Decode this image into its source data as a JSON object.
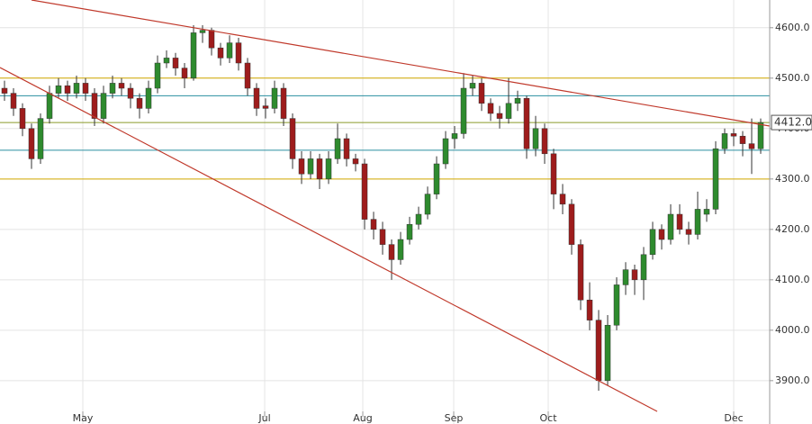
{
  "chart_data": {
    "type": "candlestick",
    "xlim": [
      -0.5,
      85
    ],
    "ylim": [
      3814,
      4655
    ],
    "yticks": [
      {
        "value": 3900,
        "label": "3900.0"
      },
      {
        "value": 4000,
        "label": "4000.0"
      },
      {
        "value": 4100,
        "label": "4100.0"
      },
      {
        "value": 4200,
        "label": "4200.0"
      },
      {
        "value": 4300,
        "label": "4300.0"
      },
      {
        "value": 4400,
        "label": "4400.0"
      },
      {
        "value": 4500,
        "label": "4500.0"
      },
      {
        "value": 4600,
        "label": "4600.0"
      }
    ],
    "xticks": [
      {
        "value": 8.7,
        "label": "May"
      },
      {
        "value": 28.9,
        "label": "Jul"
      },
      {
        "value": 39.8,
        "label": "Aug"
      },
      {
        "value": 49.9,
        "label": "Sep"
      },
      {
        "value": 60.4,
        "label": "Oct"
      },
      {
        "value": 81,
        "label": "Dec"
      }
    ],
    "grid": true,
    "up_color": "#2e8b2e",
    "down_color": "#9e1c1c",
    "ohlc": [
      [
        4480,
        4495,
        4455,
        4470
      ],
      [
        4470,
        4480,
        4425,
        4440
      ],
      [
        4440,
        4450,
        4385,
        4400
      ],
      [
        4400,
        4410,
        4320,
        4340
      ],
      [
        4340,
        4430,
        4330,
        4420
      ],
      [
        4420,
        4485,
        4410,
        4470
      ],
      [
        4470,
        4500,
        4460,
        4485
      ],
      [
        4485,
        4495,
        4455,
        4470
      ],
      [
        4470,
        4505,
        4460,
        4490
      ],
      [
        4490,
        4500,
        4455,
        4470
      ],
      [
        4470,
        4480,
        4405,
        4420
      ],
      [
        4420,
        4485,
        4410,
        4470
      ],
      [
        4470,
        4505,
        4460,
        4490
      ],
      [
        4490,
        4500,
        4465,
        4480
      ],
      [
        4480,
        4490,
        4440,
        4460
      ],
      [
        4460,
        4470,
        4420,
        4440
      ],
      [
        4440,
        4495,
        4430,
        4480
      ],
      [
        4480,
        4545,
        4470,
        4530
      ],
      [
        4530,
        4555,
        4520,
        4540
      ],
      [
        4540,
        4550,
        4505,
        4520
      ],
      [
        4520,
        4530,
        4480,
        4500
      ],
      [
        4500,
        4605,
        4495,
        4590
      ],
      [
        4590,
        4605,
        4570,
        4595
      ],
      [
        4595,
        4600,
        4545,
        4560
      ],
      [
        4560,
        4570,
        4525,
        4540
      ],
      [
        4540,
        4585,
        4530,
        4570
      ],
      [
        4570,
        4580,
        4515,
        4530
      ],
      [
        4530,
        4540,
        4465,
        4480
      ],
      [
        4480,
        4490,
        4425,
        4440
      ],
      [
        4445,
        4460,
        4420,
        4440
      ],
      [
        4440,
        4495,
        4430,
        4480
      ],
      [
        4480,
        4490,
        4405,
        4420
      ],
      [
        4420,
        4430,
        4320,
        4340
      ],
      [
        4340,
        4355,
        4290,
        4310
      ],
      [
        4310,
        4355,
        4300,
        4340
      ],
      [
        4340,
        4350,
        4280,
        4300
      ],
      [
        4300,
        4355,
        4290,
        4340
      ],
      [
        4340,
        4410,
        4330,
        4380
      ],
      [
        4380,
        4390,
        4325,
        4340
      ],
      [
        4340,
        4350,
        4315,
        4330
      ],
      [
        4330,
        4340,
        4200,
        4220
      ],
      [
        4220,
        4235,
        4180,
        4200
      ],
      [
        4200,
        4215,
        4150,
        4170
      ],
      [
        4170,
        4180,
        4100,
        4140
      ],
      [
        4140,
        4195,
        4130,
        4180
      ],
      [
        4180,
        4225,
        4170,
        4210
      ],
      [
        4210,
        4245,
        4200,
        4230
      ],
      [
        4230,
        4285,
        4220,
        4270
      ],
      [
        4270,
        4345,
        4260,
        4330
      ],
      [
        4330,
        4395,
        4320,
        4380
      ],
      [
        4380,
        4405,
        4360,
        4390
      ],
      [
        4390,
        4510,
        4380,
        4480
      ],
      [
        4480,
        4505,
        4465,
        4490
      ],
      [
        4490,
        4500,
        4435,
        4450
      ],
      [
        4450,
        4460,
        4415,
        4430
      ],
      [
        4430,
        4445,
        4400,
        4420
      ],
      [
        4420,
        4500,
        4410,
        4450
      ],
      [
        4450,
        4475,
        4435,
        4460
      ],
      [
        4460,
        4465,
        4340,
        4360
      ],
      [
        4360,
        4425,
        4345,
        4400
      ],
      [
        4400,
        4410,
        4330,
        4350
      ],
      [
        4350,
        4360,
        4240,
        4270
      ],
      [
        4270,
        4290,
        4230,
        4250
      ],
      [
        4250,
        4260,
        4150,
        4170
      ],
      [
        4170,
        4180,
        4040,
        4060
      ],
      [
        4060,
        4095,
        4000,
        4020
      ],
      [
        4020,
        4040,
        3880,
        3900
      ],
      [
        3900,
        4030,
        3890,
        4010
      ],
      [
        4010,
        4105,
        4000,
        4090
      ],
      [
        4090,
        4135,
        4070,
        4120
      ],
      [
        4120,
        4130,
        4070,
        4100
      ],
      [
        4100,
        4165,
        4060,
        4150
      ],
      [
        4150,
        4215,
        4140,
        4200
      ],
      [
        4200,
        4210,
        4160,
        4180
      ],
      [
        4180,
        4250,
        4170,
        4230
      ],
      [
        4230,
        4250,
        4190,
        4200
      ],
      [
        4200,
        4215,
        4170,
        4190
      ],
      [
        4190,
        4275,
        4180,
        4240
      ],
      [
        4230,
        4260,
        4215,
        4240
      ],
      [
        4240,
        4375,
        4230,
        4360
      ],
      [
        4360,
        4400,
        4350,
        4390
      ],
      [
        4390,
        4400,
        4365,
        4385
      ],
      [
        4385,
        4395,
        4345,
        4370
      ],
      [
        4370,
        4420,
        4310,
        4360
      ],
      [
        4360,
        4420,
        4350,
        4412
      ]
    ],
    "hlines": [
      {
        "value": 4500,
        "color": "#d4aa00"
      },
      {
        "value": 4465,
        "color": "#2a8fa0"
      },
      {
        "value": 4412,
        "color": "#8a9a2a"
      },
      {
        "value": 4357,
        "color": "#2a8fa0"
      },
      {
        "value": 4300,
        "color": "#d4aa00"
      }
    ],
    "trendlines": [
      {
        "from": [
          3,
          4655
        ],
        "to": [
          85,
          4405
        ],
        "color": "#c0392b"
      },
      {
        "from": [
          -0.5,
          4521
        ],
        "to": [
          72.5,
          3839
        ],
        "color": "#c0392b"
      }
    ],
    "price_marker": {
      "value": 4412,
      "label": "4412.0"
    }
  }
}
